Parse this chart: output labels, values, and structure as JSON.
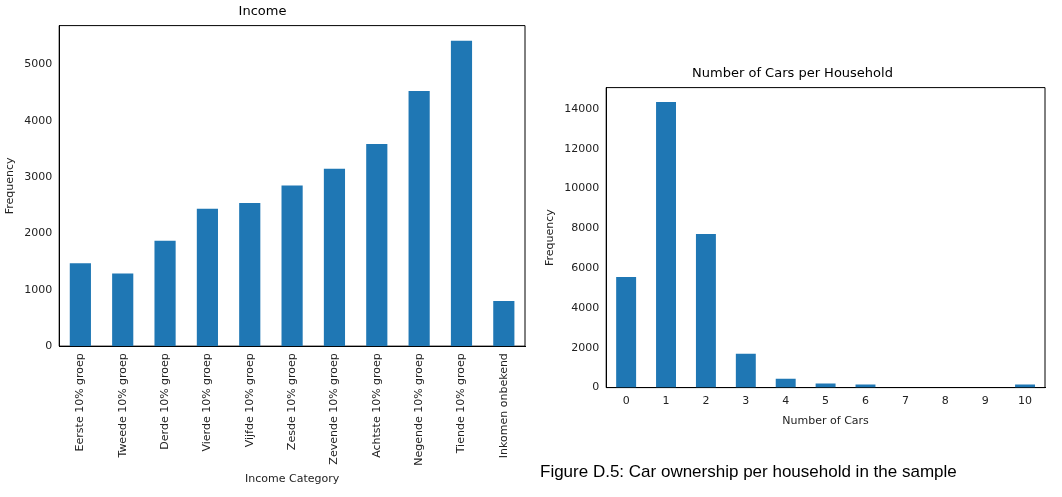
{
  "chart_data": [
    {
      "type": "bar",
      "title": "Income",
      "xlabel": "Income Category",
      "ylabel": "Frequency",
      "categories": [
        "Eerste 10% groep",
        "Tweede 10% groep",
        "Derde 10% groep",
        "Vierde 10% groep",
        "Vijfde 10% groep",
        "Zesde 10% groep",
        "Zevende 10% groep",
        "Achtste 10% groep",
        "Negende 10% groep",
        "Tiende 10% groep",
        "Inkomen onbekend"
      ],
      "series": [
        {
          "color": "#1f77b4",
          "values": [
            1470,
            1290,
            1870,
            2440,
            2540,
            2850,
            3150,
            3590,
            4530,
            5420,
            800
          ]
        }
      ],
      "ylim": [
        0,
        5690
      ],
      "yticks": [
        0,
        1000,
        2000,
        3000,
        4000,
        5000
      ],
      "grid": false,
      "legend": false
    },
    {
      "type": "bar",
      "title": "Number of Cars per Household",
      "xlabel": "Number of Cars",
      "ylabel": "Frequency",
      "categories": [
        "0",
        "1",
        "2",
        "3",
        "4",
        "5",
        "6",
        "7",
        "8",
        "9",
        "10"
      ],
      "series": [
        {
          "color": "#1f77b4",
          "values": [
            5560,
            14350,
            7720,
            1700,
            440,
            200,
            150,
            null,
            null,
            null,
            150
          ]
        }
      ],
      "ylim": [
        0,
        15070
      ],
      "yticks": [
        0,
        2000,
        4000,
        6000,
        8000,
        10000,
        12000,
        14000
      ],
      "grid": false,
      "legend": false,
      "annotations": [
        "Figure D.5: Car ownership per household in the sample"
      ]
    }
  ]
}
